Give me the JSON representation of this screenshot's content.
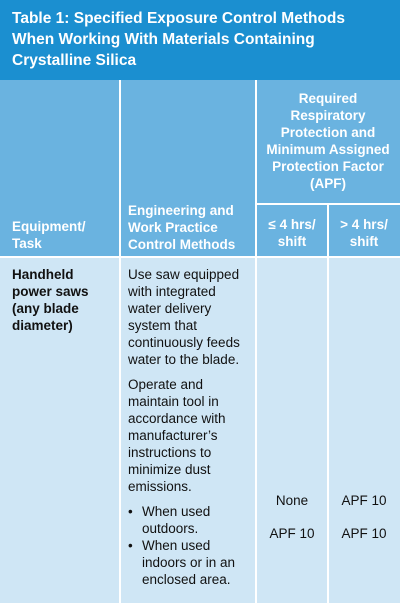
{
  "table": {
    "title": "Table 1:  Specified Exposure Control Methods When Working With Materials Containing Crystalline Silica",
    "headers": {
      "equipment": "Equipment/ Task",
      "engineering": "Engineering and Work Practice Control Methods",
      "respiratory": "Required Respiratory Protection and Minimum Assigned Protection Factor (APF)",
      "le4": "≤ 4 hrs/ shift",
      "gt4": "> 4 hrs/ shift"
    },
    "row": {
      "equipment": "Handheld power saws (any blade diameter)",
      "controls": [
        "Use saw equipped with integrated water delivery system that continuously feeds water to the blade.",
        "Operate and maintain tool in accordance with manufacturer’s instructions to minimize dust emissions."
      ],
      "conditions": [
        {
          "label": "When used outdoors.",
          "le4": "None",
          "gt4": "APF 10"
        },
        {
          "label": "When used indoors or in an enclosed area.",
          "le4": "APF 10",
          "gt4": "APF 10"
        }
      ]
    }
  },
  "colors": {
    "title_bg": "#1b8fd0",
    "header_bg": "#6ab3e0",
    "body_bg": "#cfe6f5"
  }
}
